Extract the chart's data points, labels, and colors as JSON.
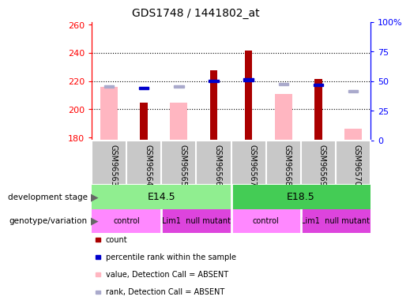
{
  "title": "GDS1748 / 1441802_at",
  "samples": [
    "GSM96563",
    "GSM96564",
    "GSM96565",
    "GSM96566",
    "GSM96567",
    "GSM96568",
    "GSM96569",
    "GSM96570"
  ],
  "ylim_left": [
    178,
    262
  ],
  "yticks_left": [
    180,
    200,
    220,
    240,
    260
  ],
  "yticks_right": [
    0,
    25,
    50,
    75,
    100
  ],
  "ytick_labels_right": [
    "0",
    "25",
    "50",
    "75",
    "100%"
  ],
  "red_bars": {
    "GSM96564": 204.5,
    "GSM96566": 227.5,
    "GSM96567": 241.5,
    "GSM96569": 221.5
  },
  "pink_bars": {
    "GSM96563": 216.0,
    "GSM96565": 204.5,
    "GSM96568": 211.0,
    "GSM96570": 186.0
  },
  "blue_squares": {
    "GSM96564": 215.0,
    "GSM96566": 220.0,
    "GSM96567": 221.0,
    "GSM96569": 217.5
  },
  "light_blue_squares": {
    "GSM96563": 216.0,
    "GSM96565": 216.0,
    "GSM96568": 218.0,
    "GSM96570": 213.0
  },
  "bar_bottom": 178,
  "red_color": "#AA0000",
  "pink_color": "#FFB6C1",
  "blue_color": "#0000CC",
  "light_blue_color": "#AAAACC",
  "dev_stage_colors": [
    "#90EE90",
    "#44CC55"
  ],
  "dev_stage_labels": [
    "E14.5",
    "E18.5"
  ],
  "dev_stage_splits": [
    4
  ],
  "geno_groups": [
    {
      "label": "control",
      "start": 0,
      "end": 2,
      "color": "#FF88FF"
    },
    {
      "label": "Lim1  null mutant",
      "start": 2,
      "end": 4,
      "color": "#DD44DD"
    },
    {
      "label": "control",
      "start": 4,
      "end": 6,
      "color": "#FF88FF"
    },
    {
      "label": "Lim1  null mutant",
      "start": 6,
      "end": 8,
      "color": "#DD44DD"
    }
  ],
  "legend_items": [
    {
      "color": "#AA0000",
      "label": "count"
    },
    {
      "color": "#0000CC",
      "label": "percentile rank within the sample"
    },
    {
      "color": "#FFB6C1",
      "label": "value, Detection Call = ABSENT"
    },
    {
      "color": "#AAAACC",
      "label": "rank, Detection Call = ABSENT"
    }
  ]
}
